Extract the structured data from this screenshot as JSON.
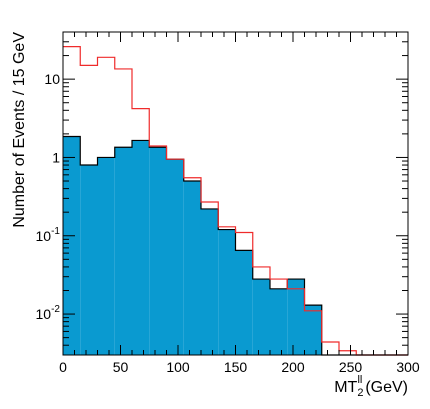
{
  "chart_data": {
    "type": "histogram",
    "xlabel_main": "MT",
    "xlabel_sub": "2",
    "xlabel_sup": "ll",
    "xlabel_unit": "(GeV)",
    "ylabel": "Number of Events / 15 GeV",
    "xlim": [
      0,
      300
    ],
    "ylim": [
      0.003,
      40
    ],
    "yscale": "log",
    "x_ticks": [
      0,
      50,
      100,
      150,
      200,
      250,
      300
    ],
    "y_ticks": [
      {
        "value": 10,
        "base": "10",
        "exp": ""
      },
      {
        "value": 1,
        "base": "1",
        "exp": ""
      },
      {
        "value": 0.1,
        "base": "10",
        "exp": "-1"
      },
      {
        "value": 0.01,
        "base": "10",
        "exp": "-2"
      }
    ],
    "bin_edges": [
      0,
      15,
      30,
      45,
      60,
      75,
      90,
      105,
      120,
      135,
      150,
      165,
      180,
      195,
      210,
      225,
      240,
      255,
      270,
      285,
      300
    ],
    "series": [
      {
        "style": "filled",
        "color": "#0a9ad0",
        "values": [
          1.85,
          0.8,
          1.0,
          1.35,
          1.65,
          1.35,
          0.95,
          0.5,
          0.22,
          0.12,
          0.065,
          0.028,
          0.021,
          0.028,
          0.013,
          0.0,
          0.0,
          0.0,
          0.0,
          0.0
        ]
      },
      {
        "style": "step",
        "color": "#ef2b2b",
        "values": [
          26,
          15,
          19,
          13.5,
          4.2,
          1.4,
          0.95,
          0.55,
          0.27,
          0.13,
          0.11,
          0.04,
          0.028,
          0.021,
          0.011,
          0.0044,
          0.0034,
          0.0,
          0.0,
          0.0
        ]
      }
    ]
  }
}
